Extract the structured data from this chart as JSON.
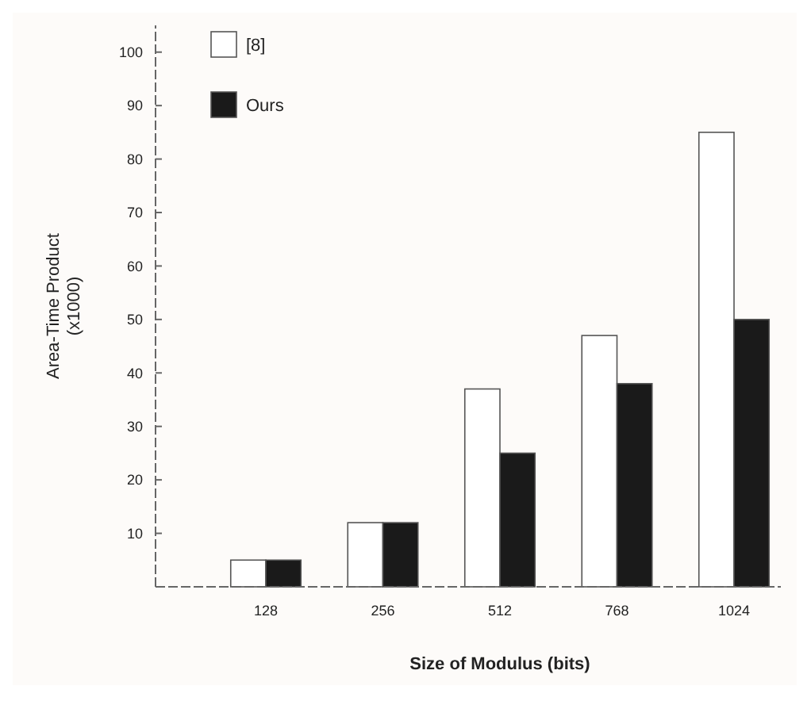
{
  "chart_data": {
    "type": "bar",
    "xlabel": "Size of Modulus (bits)",
    "ylabel": "Area-Time Product (x1000)",
    "categories": [
      "128",
      "256",
      "512",
      "768",
      "1024"
    ],
    "series": [
      {
        "name": "[8]",
        "color": "#ffffff",
        "values": [
          5,
          12,
          37,
          47,
          85
        ]
      },
      {
        "name": "Ours",
        "color": "#1a1a1a",
        "values": [
          5,
          12,
          25,
          38,
          50
        ]
      }
    ],
    "ylim": [
      0,
      105
    ],
    "yticks": [
      10,
      20,
      30,
      40,
      50,
      60,
      70,
      80,
      90,
      100
    ],
    "legend": "top left",
    "grid": false
  }
}
